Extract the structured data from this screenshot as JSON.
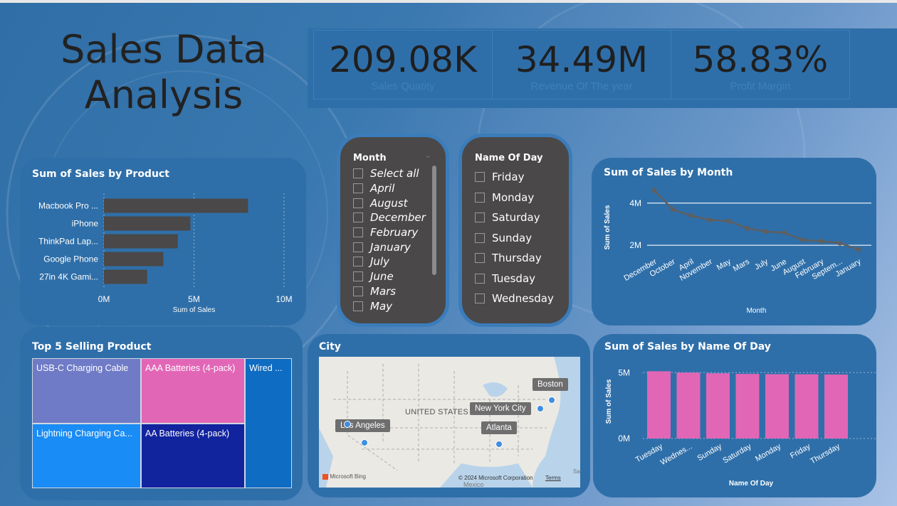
{
  "title": "Sales Data Analysis",
  "kpis": [
    {
      "value": "209.08K",
      "label": "Sales Quatity"
    },
    {
      "value": "34.49M",
      "label": "Revenue Of The year"
    },
    {
      "value": "58.83%",
      "label": "Profit Margin"
    }
  ],
  "sales_by_product": {
    "title": "Sum of Sales by Product",
    "xlabel": "Sum of Sales",
    "ticks": [
      "0M",
      "5M",
      "10M"
    ],
    "categories": [
      "Macbook Pro ...",
      "iPhone",
      "ThinkPad Lap...",
      "Google Phone",
      "27in 4K Gami..."
    ]
  },
  "month_slicer": {
    "title": "Month",
    "options": [
      "Select all",
      "April",
      "August",
      "December",
      "February",
      "January",
      "July",
      "June",
      "Mars",
      "May"
    ]
  },
  "day_slicer": {
    "title": "Name Of Day",
    "options": [
      "Friday",
      "Monday",
      "Saturday",
      "Sunday",
      "Thursday",
      "Tuesday",
      "Wednesday"
    ]
  },
  "sales_by_month": {
    "title": "Sum of Sales by Month",
    "xlabel": "Month",
    "ylabel": "Sum of Sales",
    "ticks": [
      "4M",
      "2M"
    ]
  },
  "top5": {
    "title": "Top 5 Selling Product",
    "items": [
      "USB-C Charging Cable",
      "AAA Batteries (4-pack)",
      "Wired ...",
      "Lightning Charging Ca...",
      "AA Batteries (4-pack)"
    ]
  },
  "city": {
    "title": "City",
    "country_label": "UNITED STATES",
    "cities": [
      "Boston",
      "New York City",
      "Los Angeles",
      "Atlanta"
    ],
    "attribution": "© 2024 Microsoft Corporation",
    "terms": "Terms",
    "provider": "Microsoft Bing",
    "mexico": "Mexico",
    "sa": "Sa"
  },
  "sales_by_day": {
    "title": "Sum of Sales by Name Of Day",
    "xlabel": "Name Of Day",
    "ylabel": "Sum of Sales",
    "ticks": [
      "5M",
      "0M"
    ]
  },
  "chart_data": [
    {
      "type": "bar",
      "orientation": "horizontal",
      "title": "Sum of Sales by Product",
      "categories": [
        "Macbook Pro ...",
        "iPhone",
        "ThinkPad Lap...",
        "Google Phone",
        "27in 4K Gami..."
      ],
      "values": [
        8.0,
        4.8,
        4.1,
        3.3,
        2.4
      ],
      "unit": "M",
      "xlabel": "Sum of Sales",
      "xlim": [
        0,
        10
      ],
      "color": "#4a4848"
    },
    {
      "type": "line",
      "title": "Sum of Sales by Month",
      "categories": [
        "December",
        "October",
        "April",
        "November",
        "May",
        "Mars",
        "July",
        "June",
        "August",
        "February",
        "Septem...",
        "January"
      ],
      "values": [
        4.6,
        3.7,
        3.4,
        3.2,
        3.15,
        2.8,
        2.65,
        2.6,
        2.25,
        2.2,
        2.1,
        1.8
      ],
      "unit": "M",
      "xlabel": "Month",
      "ylabel": "Sum of Sales",
      "ylim": [
        1.6,
        4.8
      ],
      "gridlines": [
        2,
        4
      ],
      "color": "#5f5f5f"
    },
    {
      "type": "bar",
      "title": "Sum of Sales by Name Of Day",
      "categories": [
        "Tuesday",
        "Wednes...",
        "Sunday",
        "Saturday",
        "Monday",
        "Friday",
        "Thursday"
      ],
      "values": [
        5.1,
        5.0,
        4.95,
        4.9,
        4.88,
        4.87,
        4.85
      ],
      "unit": "M",
      "xlabel": "Name Of Day",
      "ylabel": "Sum of Sales",
      "ylim": [
        0,
        5.5
      ],
      "color": "#e266b6"
    }
  ]
}
